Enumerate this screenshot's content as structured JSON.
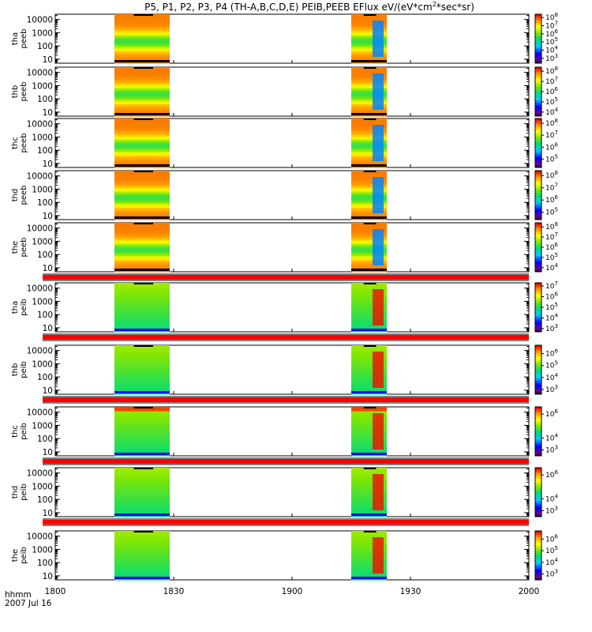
{
  "chart_data": {
    "type": "heatmap",
    "title_main": "P5, P1, P2, P3, P4 (TH-A,B,C,D,E) PEIB,PEEB EFlux eV/(eV*cm",
    "title_sup": "2",
    "title_tail": "*sec*sr)",
    "xlabel": "hhmm",
    "date_label": "2007 Jul 16",
    "x_ticks": [
      "1800",
      "1830",
      "1900",
      "1930",
      "2000"
    ],
    "y_ticks": [
      "10",
      "100",
      "1000",
      "10000"
    ],
    "time_range_hhmm": [
      "1800",
      "2000"
    ],
    "energy_range_eV": [
      5,
      25000
    ],
    "active_intervals_hhmm": [
      [
        "1815",
        "1829"
      ],
      [
        "1915",
        "1924"
      ]
    ],
    "panels": [
      {
        "probe_line": "tha",
        "product_line": "peeb",
        "colorbar_labels": [
          {
            "base": "10",
            "exp": "8"
          },
          {
            "base": "10",
            "exp": "7"
          },
          {
            "base": "10",
            "exp": "6"
          },
          {
            "base": "10",
            "exp": "5"
          },
          {
            "base": "10",
            "exp": "4"
          },
          {
            "base": "10",
            "exp": "3"
          }
        ],
        "log_flux_range": [
          2.4,
          8.4
        ],
        "separator_after": false
      },
      {
        "probe_line": "thb",
        "product_line": "peeb",
        "colorbar_labels": [
          {
            "base": "10",
            "exp": "8"
          },
          {
            "base": "10",
            "exp": "7"
          },
          {
            "base": "10",
            "exp": "6"
          },
          {
            "base": "10",
            "exp": "5"
          },
          {
            "base": "10",
            "exp": "4"
          }
        ],
        "log_flux_range": [
          3.6,
          8.4
        ],
        "separator_after": false
      },
      {
        "probe_line": "thc",
        "product_line": "peeb",
        "colorbar_labels": [
          {
            "base": "10",
            "exp": "8"
          },
          {
            "base": "10",
            "exp": "7"
          },
          {
            "base": "10",
            "exp": "6"
          },
          {
            "base": "10",
            "exp": "5"
          }
        ],
        "log_flux_range": [
          4.3,
          8.4
        ],
        "separator_after": false
      },
      {
        "probe_line": "thd",
        "product_line": "peeb",
        "colorbar_labels": [
          {
            "base": "10",
            "exp": "8"
          },
          {
            "base": "10",
            "exp": "7"
          },
          {
            "base": "10",
            "exp": "6"
          },
          {
            "base": "10",
            "exp": "5"
          }
        ],
        "log_flux_range": [
          4.4,
          8.4
        ],
        "separator_after": false
      },
      {
        "probe_line": "the",
        "product_line": "peeb",
        "colorbar_labels": [
          {
            "base": "10",
            "exp": "8"
          },
          {
            "base": "10",
            "exp": "7"
          },
          {
            "base": "10",
            "exp": "6"
          },
          {
            "base": "10",
            "exp": "5"
          },
          {
            "base": "10",
            "exp": "4"
          }
        ],
        "log_flux_range": [
          3.6,
          8.4
        ],
        "separator_after": true
      },
      {
        "probe_line": "tha",
        "product_line": "peib",
        "colorbar_labels": [
          {
            "base": "10",
            "exp": "7"
          },
          {
            "base": "10",
            "exp": "6"
          },
          {
            "base": "10",
            "exp": "5"
          },
          {
            "base": "10",
            "exp": "4"
          },
          {
            "base": "10",
            "exp": "3"
          }
        ],
        "log_flux_range": [
          2.7,
          7.3
        ],
        "separator_after": true
      },
      {
        "probe_line": "thb",
        "product_line": "peib",
        "colorbar_labels": [
          {
            "base": "10",
            "exp": "6"
          },
          {
            "base": "10",
            "exp": "5"
          },
          {
            "base": "10",
            "exp": "4"
          },
          {
            "base": "10",
            "exp": "3"
          }
        ],
        "log_flux_range": [
          2.6,
          6.7
        ],
        "separator_after": true
      },
      {
        "probe_line": "thc",
        "product_line": "peib",
        "colorbar_labels": [
          {
            "base": "10",
            "exp": "6"
          },
          {
            "base": "10",
            "exp": "4"
          },
          {
            "base": "10",
            "exp": "3"
          }
        ],
        "log_flux_range": [
          2.5,
          6.6
        ],
        "separator_after": true
      },
      {
        "probe_line": "thd",
        "product_line": "peib",
        "colorbar_labels": [
          {
            "base": "10",
            "exp": "6"
          },
          {
            "base": "10",
            "exp": "4"
          },
          {
            "base": "10",
            "exp": "3"
          }
        ],
        "log_flux_range": [
          2.5,
          6.6
        ],
        "separator_after": true
      },
      {
        "probe_line": "the",
        "product_line": "peib",
        "colorbar_labels": [
          {
            "base": "10",
            "exp": "6"
          },
          {
            "base": "10",
            "exp": "5"
          },
          {
            "base": "10",
            "exp": "4"
          },
          {
            "base": "10",
            "exp": "3"
          }
        ],
        "log_flux_range": [
          2.5,
          6.7
        ],
        "separator_after": false
      }
    ]
  }
}
